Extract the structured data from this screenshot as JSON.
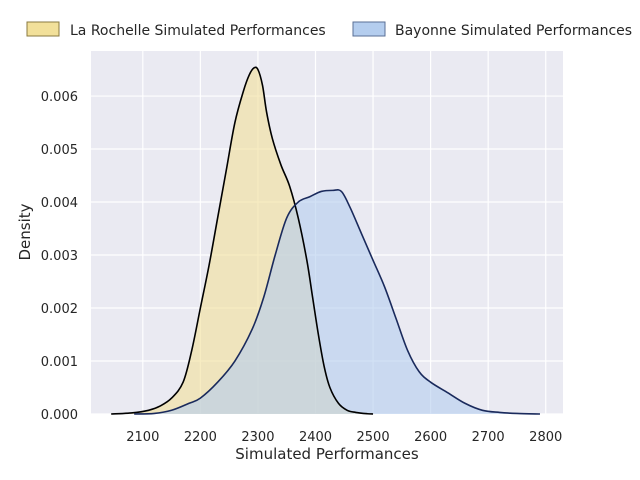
{
  "chart_data": {
    "type": "area",
    "title": "",
    "xlabel": "Simulated Performances",
    "ylabel": "Density",
    "xlim": [
      2010,
      2830
    ],
    "ylim": [
      0,
      0.00685
    ],
    "x_ticks": [
      2100,
      2200,
      2300,
      2400,
      2500,
      2600,
      2700,
      2800
    ],
    "x_tick_labels": [
      "2100",
      "2200",
      "2300",
      "2400",
      "2500",
      "2600",
      "2700",
      "2800"
    ],
    "y_ticks": [
      0,
      0.001,
      0.002,
      0.003,
      0.004,
      0.005,
      0.006
    ],
    "y_tick_labels": [
      "0.000",
      "0.001",
      "0.002",
      "0.003",
      "0.004",
      "0.005",
      "0.006"
    ],
    "grid": true,
    "legend_position": "top",
    "series": [
      {
        "name": "La Rochelle Simulated Performances",
        "fill": "#f2e09a",
        "line": "#000000",
        "x": [
          2045,
          2080,
          2110,
          2130,
          2150,
          2170,
          2185,
          2200,
          2215,
          2230,
          2245,
          2260,
          2275,
          2285,
          2293,
          2300,
          2308,
          2315,
          2325,
          2340,
          2355,
          2370,
          2385,
          2395,
          2405,
          2415,
          2425,
          2440,
          2455,
          2470,
          2490,
          2500
        ],
        "y": [
          0.0,
          2e-05,
          7e-05,
          0.00015,
          0.0003,
          0.0006,
          0.0012,
          0.002,
          0.0028,
          0.0037,
          0.0046,
          0.0055,
          0.0061,
          0.0064,
          0.00653,
          0.0065,
          0.0062,
          0.0057,
          0.0052,
          0.0047,
          0.0043,
          0.0037,
          0.0029,
          0.0022,
          0.0015,
          0.0009,
          0.0005,
          0.0002,
          7e-05,
          3e-05,
          5e-06,
          0.0
        ]
      },
      {
        "name": "Bayonne Simulated Performances",
        "fill": "#b4cdee",
        "line": "#1a2a5c",
        "x": [
          2085,
          2120,
          2150,
          2180,
          2200,
          2230,
          2260,
          2290,
          2310,
          2330,
          2350,
          2370,
          2390,
          2410,
          2430,
          2445,
          2460,
          2480,
          2500,
          2520,
          2540,
          2560,
          2580,
          2600,
          2630,
          2660,
          2690,
          2720,
          2750,
          2790
        ],
        "y": [
          0.0,
          1e-05,
          7e-05,
          0.0002,
          0.0003,
          0.0006,
          0.001,
          0.0016,
          0.0022,
          0.003,
          0.0037,
          0.004,
          0.0041,
          0.0042,
          0.00422,
          0.0042,
          0.0039,
          0.0034,
          0.0029,
          0.0024,
          0.0018,
          0.0012,
          0.0008,
          0.0006,
          0.0004,
          0.0002,
          7e-05,
          3e-05,
          1e-05,
          0.0
        ]
      }
    ]
  }
}
